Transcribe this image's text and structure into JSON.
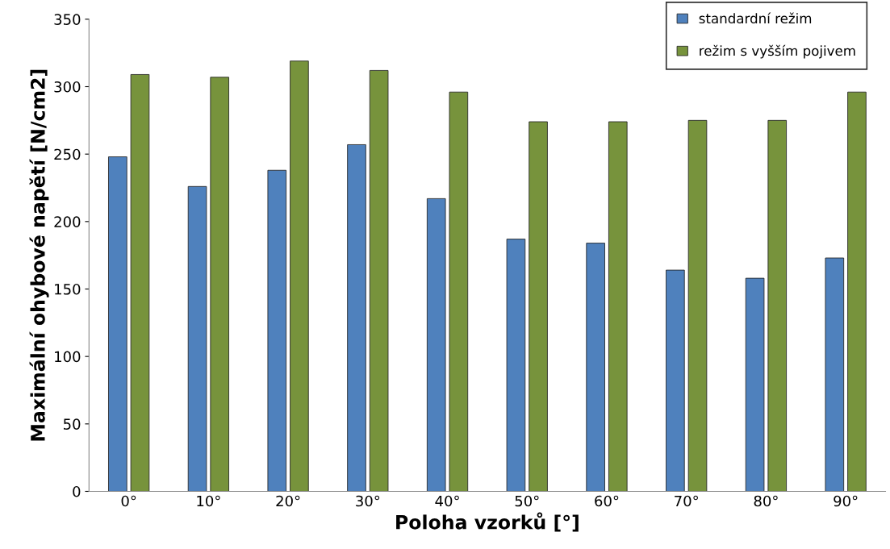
{
  "chart_data": {
    "type": "bar",
    "xlabel": "Poloha vzorků [°]",
    "ylabel": "Maximální ohybové napětí [N/cm2]",
    "categories": [
      "0°",
      "10°",
      "20°",
      "30°",
      "40°",
      "50°",
      "60°",
      "70°",
      "80°",
      "90°"
    ],
    "series": [
      {
        "name": "standardní režim",
        "color": "#4f81bd",
        "values": [
          248,
          226,
          238,
          257,
          217,
          187,
          184,
          164,
          158,
          173
        ]
      },
      {
        "name": "režim s vyšším pojivem",
        "color": "#77933c",
        "values": [
          309,
          307,
          319,
          312,
          296,
          274,
          274,
          275,
          275,
          296
        ]
      }
    ],
    "ylim": [
      0,
      350
    ],
    "yticks": [
      0,
      50,
      100,
      150,
      200,
      250,
      300,
      350
    ],
    "grid": false,
    "legend": "top right"
  }
}
